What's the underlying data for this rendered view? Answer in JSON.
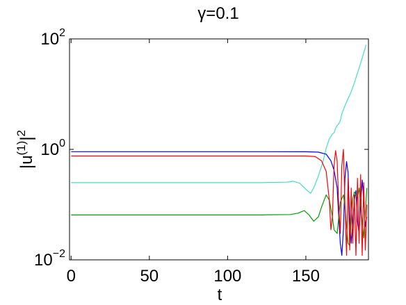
{
  "chart_data": {
    "type": "line",
    "title": "γ=0.1",
    "xlabel": "t",
    "ylabel": "|u(1)|2",
    "ylabel_parts": {
      "base": "|u",
      "sup1": "(1)",
      "mid": "|",
      "sup2": "2"
    },
    "xlim": [
      -1,
      190
    ],
    "ylim": [
      0.01,
      100
    ],
    "yscale": "log",
    "grid": false,
    "x_ticks": [
      "0",
      "50",
      "100",
      "150"
    ],
    "x_tick_values": [
      0,
      50,
      100,
      150
    ],
    "y_ticks": [
      {
        "value": 0.01,
        "base": "10",
        "exp": "−2"
      },
      {
        "value": 1,
        "base": "10",
        "exp": "0"
      },
      {
        "value": 100,
        "base": "10",
        "exp": "2"
      }
    ],
    "series": [
      {
        "color": "#40e0c0",
        "x": [
          0,
          40,
          80,
          120,
          138,
          142,
          146,
          150,
          153,
          155,
          158,
          161,
          163,
          165,
          167,
          168,
          169,
          170,
          171,
          172,
          173,
          175,
          177,
          179,
          181,
          183,
          185,
          187,
          188.5
        ],
        "y": [
          0.25,
          0.25,
          0.25,
          0.25,
          0.255,
          0.265,
          0.245,
          0.19,
          0.16,
          0.2,
          0.33,
          0.6,
          1.05,
          1.55,
          1.9,
          2.0,
          2.4,
          2.7,
          2.9,
          3.3,
          4.4,
          6.2,
          8.3,
          11,
          16,
          24,
          36,
          56,
          78
        ]
      },
      {
        "color": "#0000ff",
        "x": [
          0,
          60,
          120,
          150,
          158,
          163,
          166,
          168,
          170,
          171,
          172,
          173,
          174,
          175,
          176,
          177,
          178,
          179,
          180,
          181,
          182,
          183,
          184,
          185,
          186,
          187,
          188,
          189
        ],
        "y": [
          0.91,
          0.91,
          0.91,
          0.905,
          0.89,
          0.82,
          0.62,
          0.42,
          0.2,
          0.06,
          0.02,
          0.012,
          0.035,
          0.3,
          0.6,
          0.38,
          0.05,
          0.02,
          0.05,
          0.12,
          0.18,
          0.05,
          0.03,
          0.1,
          0.28,
          0.13,
          0.04,
          0.06
        ]
      },
      {
        "color": "#00a000",
        "x": [
          0,
          60,
          120,
          140,
          145,
          149,
          152,
          155,
          158,
          160,
          163,
          165,
          167,
          168,
          170,
          171,
          172,
          174,
          175,
          176,
          177,
          178,
          179,
          180,
          181,
          183,
          184,
          185,
          186,
          187,
          189
        ],
        "y": [
          0.065,
          0.065,
          0.065,
          0.066,
          0.07,
          0.078,
          0.065,
          0.05,
          0.06,
          0.09,
          0.15,
          0.12,
          0.06,
          0.035,
          0.03,
          0.06,
          0.11,
          0.15,
          0.09,
          0.04,
          0.02,
          0.018,
          0.05,
          0.13,
          0.17,
          0.13,
          0.2,
          0.1,
          0.05,
          0.025,
          0.2
        ]
      },
      {
        "color": "#ff0000",
        "x": [
          0,
          60,
          120,
          150,
          156,
          160,
          163,
          165,
          166,
          167,
          168,
          169,
          170,
          171,
          172,
          173,
          174,
          175,
          176,
          177,
          178,
          179,
          180,
          181,
          182,
          183,
          184,
          185,
          186,
          187,
          188,
          189
        ],
        "y": [
          0.76,
          0.76,
          0.76,
          0.76,
          0.74,
          0.62,
          0.4,
          0.12,
          0.035,
          0.06,
          0.5,
          0.95,
          0.6,
          0.1,
          0.03,
          0.5,
          1.0,
          0.1,
          0.012,
          0.3,
          0.015,
          0.2,
          0.02,
          0.15,
          0.012,
          0.3,
          0.02,
          0.35,
          0.012,
          0.25,
          0.015,
          0.1
        ]
      }
    ]
  }
}
